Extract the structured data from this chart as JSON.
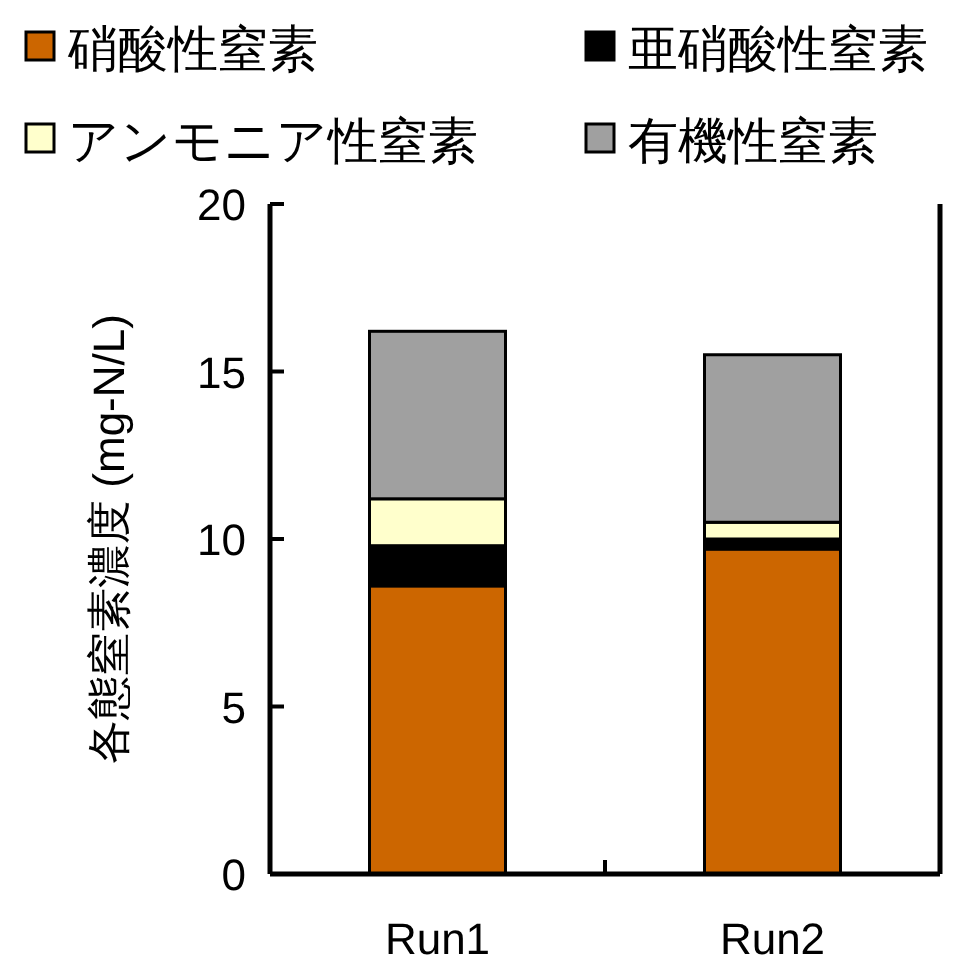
{
  "chart_data": {
    "type": "bar",
    "stacked": true,
    "ylabel": "各態窒素濃度 (mg-N/L)",
    "categories": [
      "Run1",
      "Run2"
    ],
    "series": [
      {
        "name": "硝酸性窒素",
        "color": "#cc6600",
        "values": [
          8.6,
          9.7
        ]
      },
      {
        "name": "亜硝酸性窒素",
        "color": "#000000",
        "values": [
          1.2,
          0.3
        ]
      },
      {
        "name": "アンモニア性窒素",
        "color": "#ffffcc",
        "values": [
          1.4,
          0.5
        ]
      },
      {
        "name": "有機性窒素",
        "color": "#a0a0a0",
        "values": [
          5.0,
          5.0
        ]
      }
    ],
    "ylim": [
      0,
      20
    ],
    "yticks": [
      0,
      5,
      10,
      15,
      20
    ],
    "legend": "top"
  }
}
